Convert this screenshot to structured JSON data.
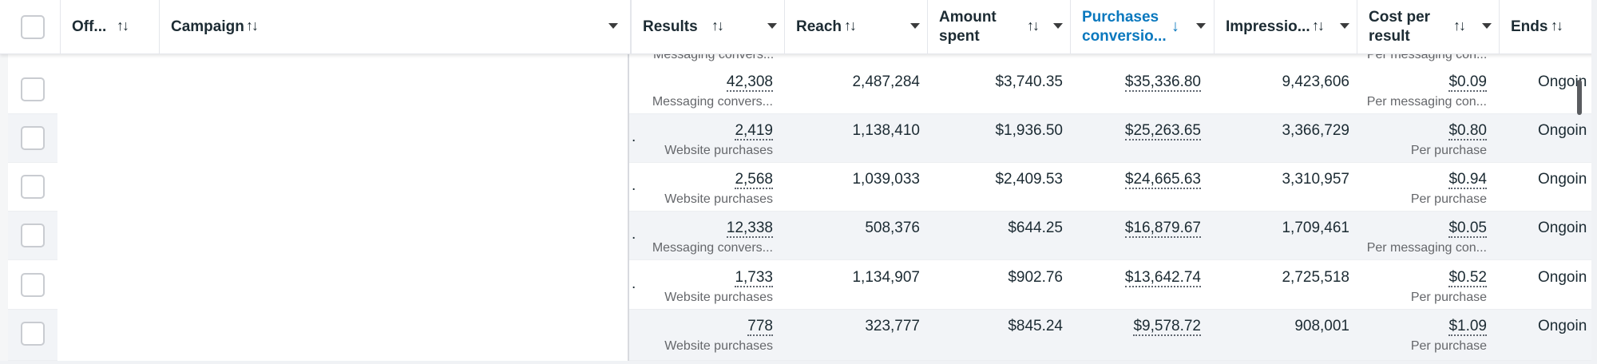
{
  "header": {
    "off_label": "Off...",
    "campaign_label": "Campaign",
    "results_label": "Results",
    "reach_label": "Reach",
    "amount_spent_label": "Amount spent",
    "purchases_label": "Purchases conversio...",
    "impressions_label": "Impressio...",
    "cost_per_result_label": "Cost per result",
    "ends_label": "Ends",
    "sort_icon": "↑↓",
    "sort_active_icon": "↓"
  },
  "partial_top": {
    "results_sub": "Messaging convers...",
    "cost_sub": "Per messaging con..."
  },
  "rows": [
    {
      "results": "42,308",
      "results_sub": "Messaging convers...",
      "reach": "2,487,284",
      "spent": "$3,740.35",
      "purchases": "$35,336.80",
      "impressions": "9,423,606",
      "cost": "$0.09",
      "cost_sub": "Per messaging con...",
      "ends": "Ongoin",
      "dot": ""
    },
    {
      "results": "2,419",
      "results_sub": "Website purchases",
      "reach": "1,138,410",
      "spent": "$1,936.50",
      "purchases": "$25,263.65",
      "impressions": "3,366,729",
      "cost": "$0.80",
      "cost_sub": "Per purchase",
      "ends": "Ongoin",
      "dot": "."
    },
    {
      "results": "2,568",
      "results_sub": "Website purchases",
      "reach": "1,039,033",
      "spent": "$2,409.53",
      "purchases": "$24,665.63",
      "impressions": "3,310,957",
      "cost": "$0.94",
      "cost_sub": "Per purchase",
      "ends": "Ongoin",
      "dot": "."
    },
    {
      "results": "12,338",
      "results_sub": "Messaging convers...",
      "reach": "508,376",
      "spent": "$644.25",
      "purchases": "$16,879.67",
      "impressions": "1,709,461",
      "cost": "$0.05",
      "cost_sub": "Per messaging con...",
      "ends": "Ongoin",
      "dot": "."
    },
    {
      "results": "1,733",
      "results_sub": "Website purchases",
      "reach": "1,134,907",
      "spent": "$902.76",
      "purchases": "$13,642.74",
      "impressions": "2,725,518",
      "cost": "$0.52",
      "cost_sub": "Per purchase",
      "ends": "Ongoin",
      "dot": "."
    },
    {
      "results": "778",
      "results_sub": "Website purchases",
      "reach": "323,777",
      "spent": "$845.24",
      "purchases": "$9,578.72",
      "impressions": "908,001",
      "cost": "$1.09",
      "cost_sub": "Per purchase",
      "ends": "Ongoin",
      "dot": ""
    }
  ],
  "colors": {
    "accent": "#0a78be",
    "row_alt": "#f2f4f7",
    "text": "#1c2b33",
    "muted": "#65676b"
  }
}
